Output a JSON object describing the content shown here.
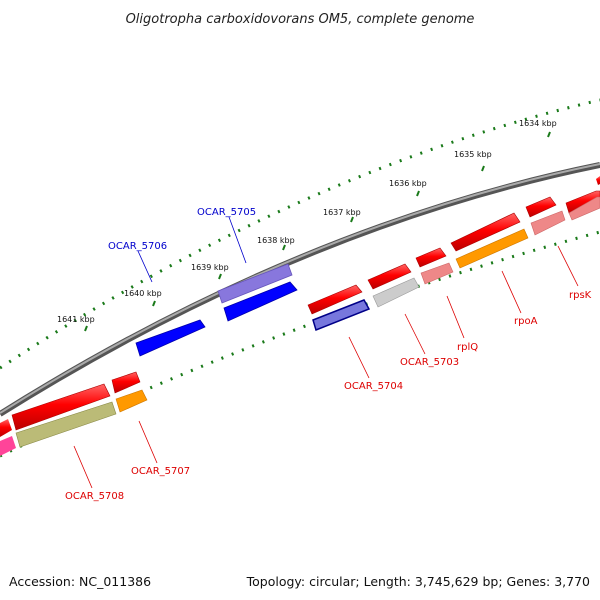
{
  "title": "Oligotropha carboxidovorans OM5, complete genome",
  "footer": {
    "accession": "Accession: NC_011386",
    "topology": "Topology: circular; Length: 3,745,629 bp; Genes: 3,770"
  },
  "ticks": [
    "1634 kbp",
    "1635 kbp",
    "1636 kbp",
    "1637 kbp",
    "1638 kbp",
    "1639 kbp",
    "1640 kbp",
    "1641 kbp"
  ],
  "genes": {
    "ocar5705": "OCAR_5705",
    "ocar5706": "OCAR_5706",
    "ocar5704": "OCAR_5704",
    "ocar5703": "OCAR_5703",
    "rplQ": "rplQ",
    "rpoA": "rpoA",
    "rpsK": "rpsK",
    "ocar5707": "OCAR_5707",
    "ocar5708": "OCAR_5708"
  },
  "colors": {
    "forward_label": "#0000cc",
    "reverse_label": "#dd0000",
    "tick": "#1a7a1a",
    "backbone": "#7a7a7a",
    "gene_red": "#ff0000",
    "gene_blue": "#0000ff",
    "gene_purple": "#7766dd",
    "gene_orange": "#ff9900",
    "gene_pink": "#ee8888",
    "gene_gray": "#cccccc",
    "gene_olive": "#bbbb77",
    "gene_navy": "#000088"
  }
}
